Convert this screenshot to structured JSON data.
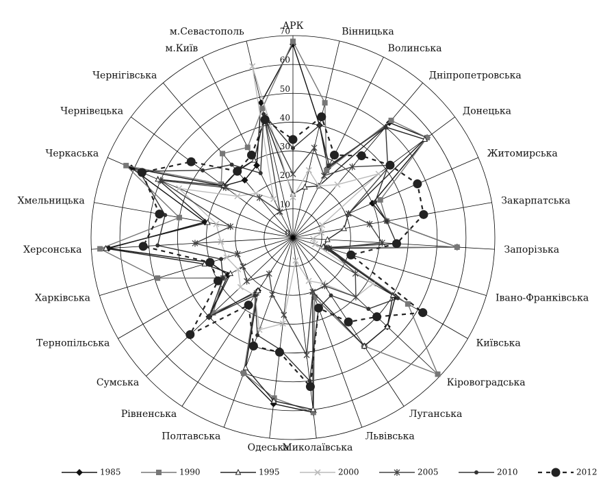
{
  "chart_data": {
    "type": "radar",
    "categories": [
      "АРК",
      "Вінницька",
      "Волинська",
      "Дніпропетровська",
      "Донецька",
      "Житомирська",
      "Закарпатська",
      "Запорізька",
      "Івано-Франківська",
      "Київська",
      "Кіровоградська",
      "Луганська",
      "Львівська",
      "Миколаївська",
      "Одеська",
      "Полтавська",
      "Рівненська",
      "Сумська",
      "Тернопільська",
      "Харківська",
      "Херсонська",
      "Хмельницька",
      "Черкаська",
      "Чернівецька",
      "Чернігівська",
      "м.Київ",
      "м.Севастополь"
    ],
    "rlim": [
      0,
      70
    ],
    "rticks": [
      0,
      10,
      20,
      30,
      40,
      50,
      60,
      70
    ],
    "grid": true,
    "legend": "bottom",
    "series": [
      {
        "name": "1985",
        "color": "#111111",
        "marker": "diamond",
        "dash": false,
        "values": [
          67,
          40,
          27,
          52,
          58,
          30,
          33,
          57,
          13,
          41,
          45,
          45,
          22,
          61,
          58,
          50,
          22,
          40,
          26,
          30,
          64,
          31,
          61,
          30,
          26,
          28,
          48
        ]
      },
      {
        "name": "1990",
        "color": "#777777",
        "marker": "square",
        "dash": false,
        "values": [
          68,
          48,
          26,
          53,
          58,
          33,
          33,
          57,
          12,
          46,
          69,
          45,
          22,
          61,
          56,
          50,
          23,
          38,
          28,
          49,
          67,
          40,
          63,
          31,
          38,
          35,
          46
        ]
      },
      {
        "name": "1995",
        "color": "#222222",
        "marker": "triangle",
        "dash": false,
        "values": [
          15,
          18,
          20,
          50,
          57,
          21,
          18,
          12,
          11,
          40,
          45,
          45,
          20,
          60,
          57,
          48,
          22,
          40,
          25,
          32,
          65,
          30,
          51,
          30,
          30,
          30,
          43
        ]
      },
      {
        "name": "2000",
        "color": "#bbbbbb",
        "marker": "x",
        "dash": false,
        "values": [
          14,
          24,
          20,
          24,
          37,
          11,
          10,
          7,
          8,
          32,
          30,
          19,
          16,
          8,
          30,
          34,
          24,
          25,
          22,
          24,
          25,
          27,
          43,
          24,
          20,
          15,
          61
        ]
      },
      {
        "name": "2005",
        "color": "#444444",
        "marker": "star",
        "dash": false,
        "values": [
          22,
          32,
          24,
          32,
          42,
          21,
          27,
          31,
          13,
          25,
          30,
          20,
          20,
          41,
          27,
          21,
          15,
          22,
          20,
          20,
          34,
          22,
          50,
          29,
          18,
          10,
          43
        ]
      },
      {
        "name": "2010",
        "color": "#333333",
        "marker": "dot",
        "dash": false,
        "values": [
          31,
          40,
          28,
          50,
          41,
          31,
          33,
          36,
          12,
          42,
          36,
          24,
          26,
          50,
          39,
          36,
          24,
          40,
          28,
          26,
          47,
          45,
          58,
          39,
          33,
          25,
          44
        ]
      },
      {
        "name": "2012",
        "color": "#222222",
        "marker": "bigdot",
        "dash": true,
        "values": [
          34,
          43,
          32,
          37,
          42,
          47,
          46,
          36,
          21,
          52,
          40,
          35,
          26,
          52,
          40,
          40,
          28,
          49,
          30,
          30,
          52,
          47,
          57,
          44,
          30,
          32,
          42
        ]
      }
    ]
  }
}
